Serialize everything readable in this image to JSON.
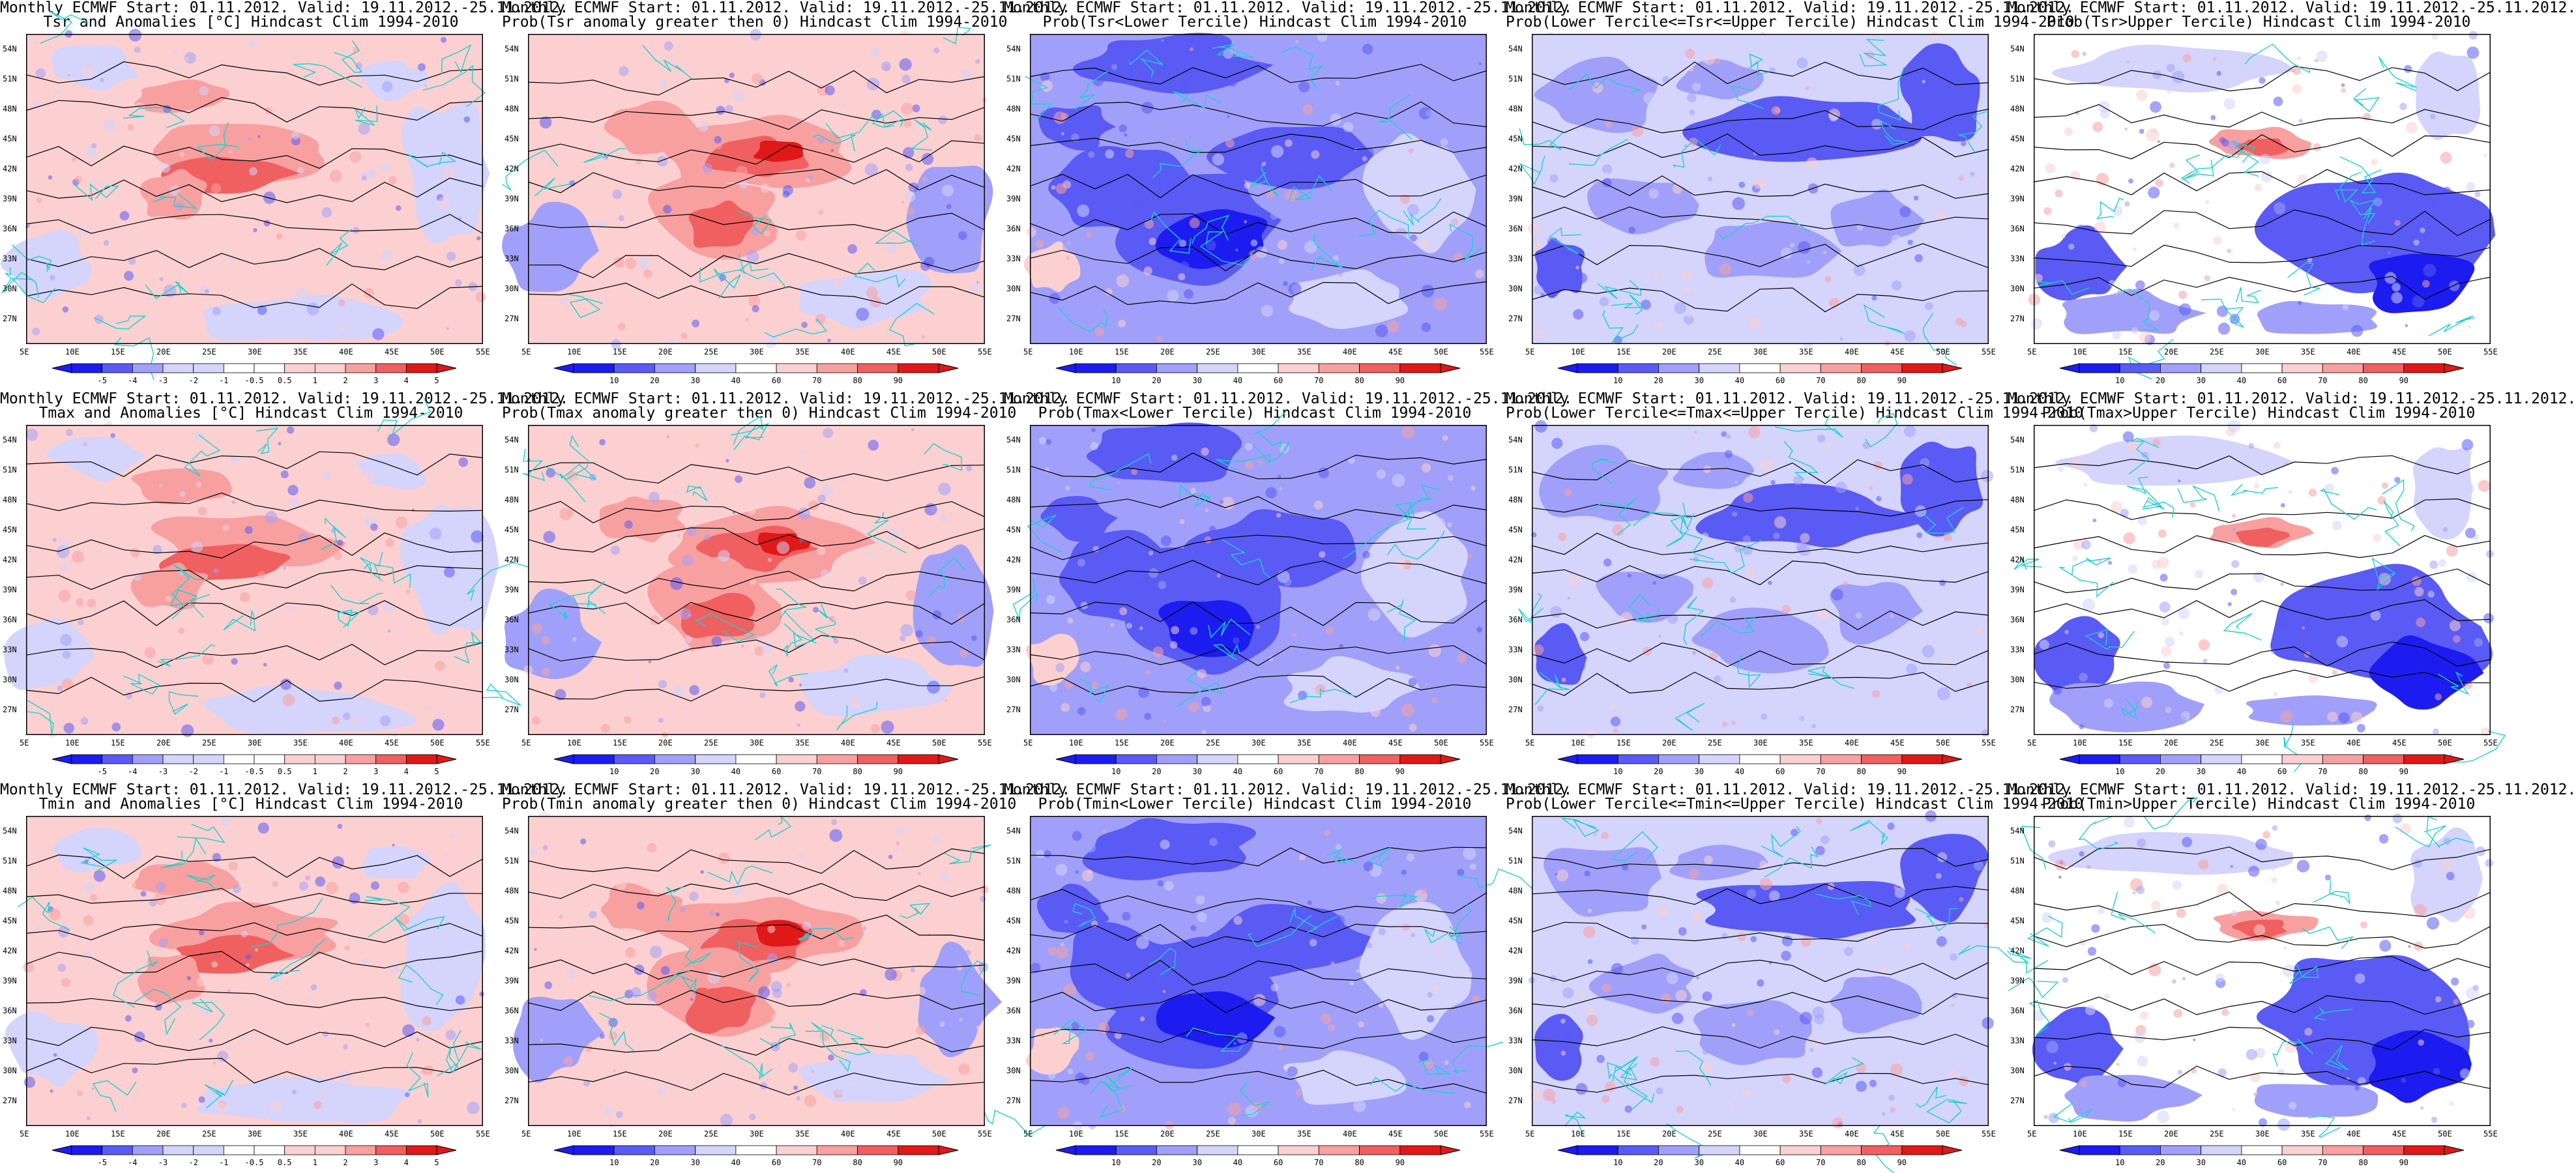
{
  "colors": {
    "deep_blue": "#1c1cf0",
    "mid_blue": "#5a5af5",
    "light_blue": "#a0a0fa",
    "pale_blue": "#d4d4fc",
    "pale_red": "#fcd0d0",
    "light_red": "#f8a0a0",
    "mid_red": "#f06060",
    "deep_red": "#e01818",
    "country_border": "#19d2d2",
    "contour": "#000000"
  },
  "axes": {
    "lat_labels": [
      "54N",
      "51N",
      "48N",
      "45N",
      "42N",
      "39N",
      "36N",
      "33N",
      "30N",
      "27N"
    ],
    "lon_labels": [
      "5E",
      "10E",
      "15E",
      "20E",
      "25E",
      "30E",
      "35E",
      "40E",
      "45E",
      "50E",
      "55E"
    ]
  },
  "legends": {
    "anomaly": [
      "-5",
      "-4",
      "-3",
      "-2",
      "-1",
      "-0.5",
      "0.5",
      "1",
      "2",
      "3",
      "4",
      "5"
    ],
    "probability": [
      "10",
      "20",
      "30",
      "40",
      "60",
      "70",
      "80",
      "90"
    ]
  },
  "panels": [
    {
      "title1": "Monthly ECMWF Start: 01.11.2012. Valid: 19.11.2012.-25.11.2012.",
      "title2": "Tsr and Anomalies [°C] Hindcast Clim 1994-2010",
      "legend": "anomaly",
      "pattern": "anom_warm"
    },
    {
      "title1": "Monthly ECMWF Start: 01.11.2012. Valid: 19.11.2012.-25.11.2012.",
      "title2": "Prob(Tsr anomaly greater then 0) Hindcast Clim 1994-2010",
      "legend": "probability",
      "pattern": "prob_warm"
    },
    {
      "title1": "Monthly ECMWF Start: 01.11.2012. Valid: 19.11.2012.-25.11.2012.",
      "title2": "Prob(Tsr<Lower Tercile) Hindcast Clim 1994-2010",
      "legend": "probability",
      "pattern": "cold_blue"
    },
    {
      "title1": "Monthly ECMWF Start: 01.11.2012. Valid: 19.11.2012.-25.11.2012.",
      "title2": "Prob(Lower Tercile<=Tsr<=Upper Tercile) Hindcast Clim 1994-2010",
      "legend": "probability",
      "pattern": "mid_blue"
    },
    {
      "title1": "Monthly ECMWF Start: 01.11.2012. Valid: 19.11.2012.-25.11.2012.",
      "title2": "Prob(Tsr>Upper Tercile) Hindcast Clim 1994-2010",
      "legend": "probability",
      "pattern": "upper_mixed"
    },
    {
      "title1": "Monthly ECMWF Start: 01.11.2012. Valid: 19.11.2012.-25.11.2012.",
      "title2": "Tmax and Anomalies [°C] Hindcast Clim 1994-2010",
      "legend": "anomaly",
      "pattern": "anom_warm"
    },
    {
      "title1": "Monthly ECMWF Start: 01.11.2012. Valid: 19.11.2012.-25.11.2012.",
      "title2": "Prob(Tmax anomaly greater then 0) Hindcast Clim 1994-2010",
      "legend": "probability",
      "pattern": "prob_warm"
    },
    {
      "title1": "Monthly ECMWF Start: 01.11.2012. Valid: 19.11.2012.-25.11.2012.",
      "title2": "Prob(Tmax<Lower Tercile) Hindcast Clim 1994-2010",
      "legend": "probability",
      "pattern": "cold_blue"
    },
    {
      "title1": "Monthly ECMWF Start: 01.11.2012. Valid: 19.11.2012.-25.11.2012.",
      "title2": "Prob(Lower Tercile<=Tmax<=Upper Tercile) Hindcast Clim 1994-2010",
      "legend": "probability",
      "pattern": "mid_blue"
    },
    {
      "title1": "Monthly ECMWF Start: 01.11.2012. Valid: 19.11.2012.-25.11.2012.",
      "title2": "Prob(Tmax>Upper Tercile) Hindcast Clim 1994-2010",
      "legend": "probability",
      "pattern": "upper_mixed"
    },
    {
      "title1": "Monthly ECMWF Start: 01.11.2012. Valid: 19.11.2012.-25.11.2012.",
      "title2": "Tmin and Anomalies [°C] Hindcast Clim 1994-2010",
      "legend": "anomaly",
      "pattern": "anom_warm"
    },
    {
      "title1": "Monthly ECMWF Start: 01.11.2012. Valid: 19.11.2012.-25.11.2012.",
      "title2": "Prob(Tmin anomaly greater then 0) Hindcast Clim 1994-2010",
      "legend": "probability",
      "pattern": "prob_warm"
    },
    {
      "title1": "Monthly ECMWF Start: 01.11.2012. Valid: 19.11.2012.-25.11.2012.",
      "title2": "Prob(Tmin<Lower Tercile) Hindcast Clim 1994-2010",
      "legend": "probability",
      "pattern": "cold_blue"
    },
    {
      "title1": "Monthly ECMWF Start: 01.11.2012. Valid: 19.11.2012.-25.11.2012.",
      "title2": "Prob(Lower Tercile<=Tmin<=Upper Tercile) Hindcast Clim 1994-2010",
      "legend": "probability",
      "pattern": "mid_blue"
    },
    {
      "title1": "Monthly ECMWF Start: 01.11.2012. Valid: 19.11.2012.-25.11.2012.",
      "title2": "Prob(Tmin>Upper Tercile) Hindcast Clim 1994-2010",
      "legend": "probability",
      "pattern": "upper_mixed"
    }
  ]
}
